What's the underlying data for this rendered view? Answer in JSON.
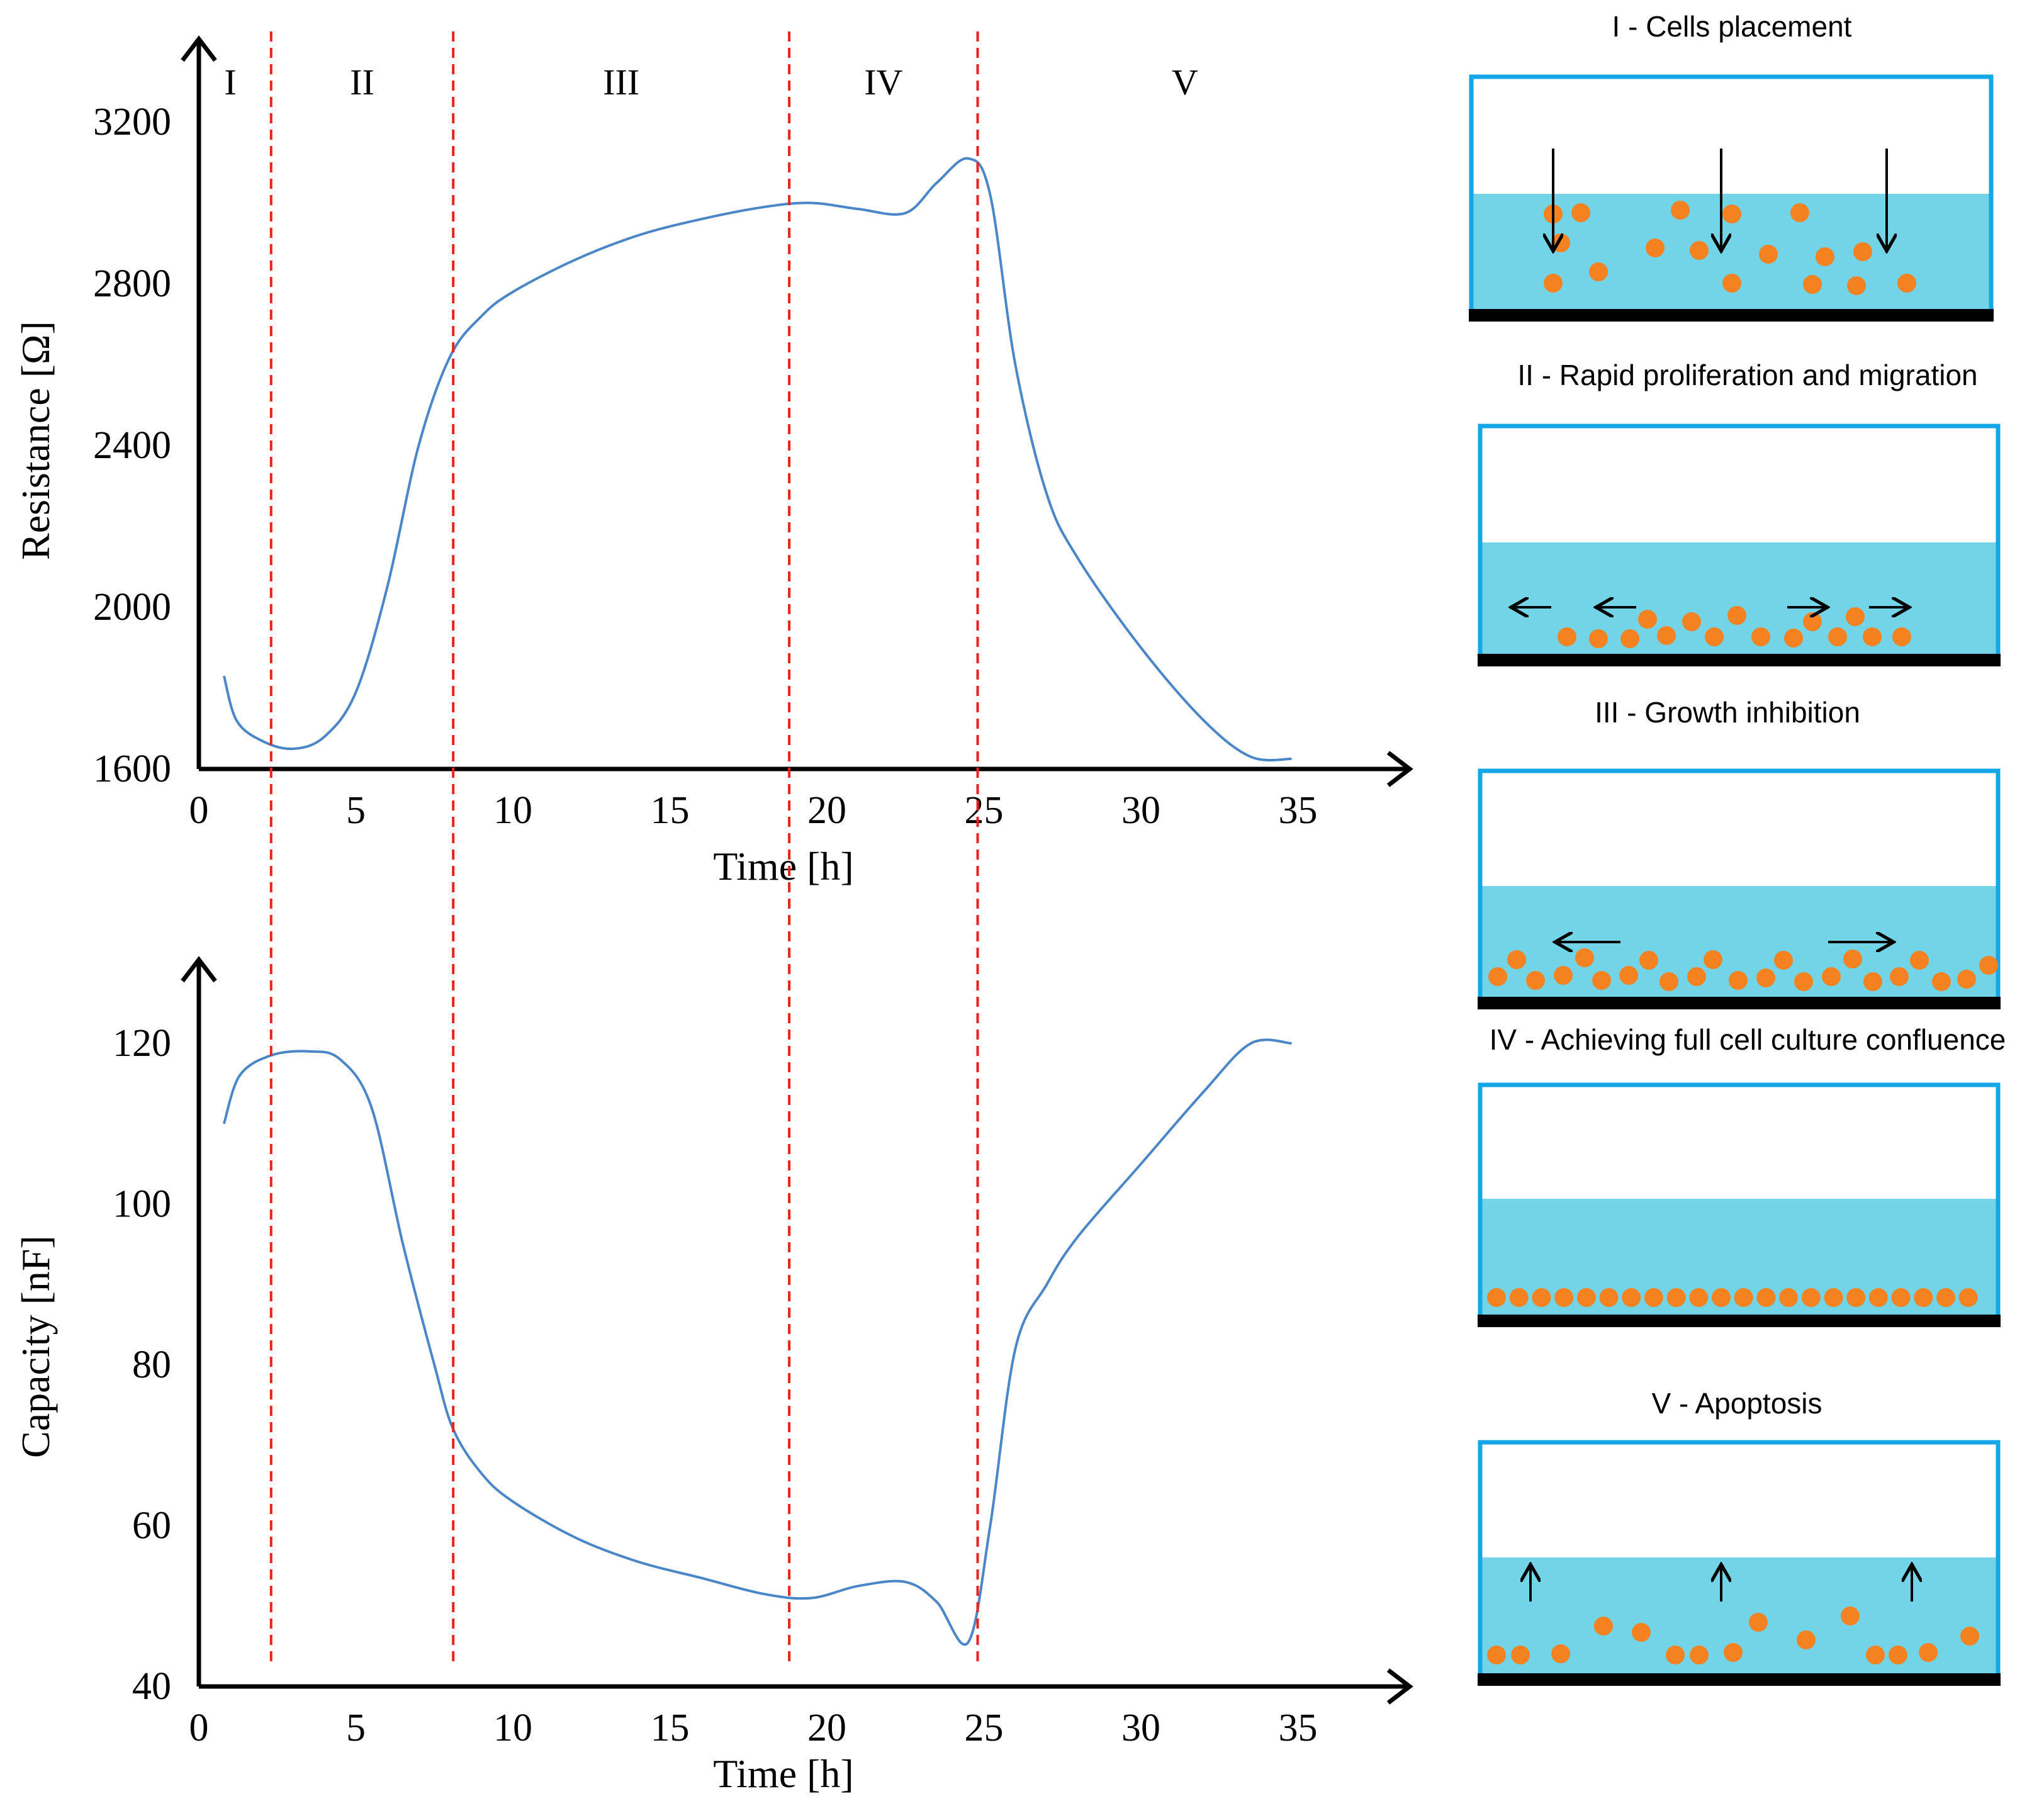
{
  "colors": {
    "curve": "#4a86c8",
    "phase_line": "#e8231c",
    "well_border": "#14a6e6",
    "medium": "#72d4e6",
    "cell": "#f58220",
    "substrate": "#000000",
    "axis": "#000000"
  },
  "phases": {
    "labels": [
      "I",
      "II",
      "III",
      "IV",
      "V"
    ],
    "boundaries_h": [
      2.3,
      8.1,
      18.8,
      24.8
    ]
  },
  "chart_data": [
    {
      "type": "line",
      "xlabel": "Time [h]",
      "ylabel": "Resistance [Ω]",
      "xlim": [
        0,
        38.5
      ],
      "ylim": [
        1600,
        3350
      ],
      "xticks": [
        0,
        5,
        10,
        15,
        20,
        25,
        30,
        35
      ],
      "yticks": [
        1600,
        2000,
        2400,
        2800,
        3200
      ],
      "grid": false,
      "series": [
        {
          "x": [
            0.8,
            1.2,
            2.0,
            3.0,
            4.0,
            5.0,
            6.0,
            7.0,
            8.0,
            9.0,
            10.0,
            12.0,
            14.0,
            16.0,
            18.0,
            19.5,
            21.0,
            22.5,
            23.5,
            24.5,
            25.2,
            26.0,
            27.0,
            28.0,
            30.0,
            32.0,
            33.5,
            34.8
          ],
          "y": [
            1830,
            1720,
            1670,
            1650,
            1680,
            1790,
            2050,
            2400,
            2620,
            2720,
            2780,
            2860,
            2920,
            2960,
            2990,
            3000,
            2985,
            2975,
            3050,
            3110,
            3020,
            2600,
            2280,
            2120,
            1900,
            1720,
            1630,
            1625
          ]
        }
      ]
    },
    {
      "type": "line",
      "xlabel": "Time [h]",
      "ylabel": "Capacity [nF]",
      "xlim": [
        0,
        38.5
      ],
      "ylim": [
        40,
        125
      ],
      "xticks": [
        0,
        5,
        10,
        15,
        20,
        25,
        30,
        35
      ],
      "yticks": [
        40,
        60,
        80,
        100,
        120
      ],
      "grid": false,
      "series": [
        {
          "x": [
            0.8,
            1.3,
            2.3,
            3.5,
            4.5,
            5.5,
            6.5,
            7.5,
            8.1,
            9.0,
            10.0,
            12.0,
            14.0,
            16.0,
            18.0,
            19.5,
            21.0,
            22.5,
            23.5,
            24.5,
            25.2,
            26.0,
            27.0,
            28.0,
            30.0,
            32.0,
            33.5,
            34.8
          ],
          "y": [
            110,
            116,
            118.5,
            119,
            118,
            112,
            95,
            80,
            72,
            66.5,
            63,
            58.5,
            55.5,
            53.5,
            51.5,
            51,
            52.5,
            53,
            50.5,
            45.5,
            60,
            82,
            90,
            96,
            105,
            114,
            120,
            120
          ]
        }
      ]
    }
  ],
  "panels": [
    {
      "title": "I - Cells placement"
    },
    {
      "title": "II - Rapid proliferation and migration"
    },
    {
      "title": "III - Growth inhibition"
    },
    {
      "title": "IV - Achieving full cell culture confluence"
    },
    {
      "title": "V - Apoptosis"
    }
  ]
}
